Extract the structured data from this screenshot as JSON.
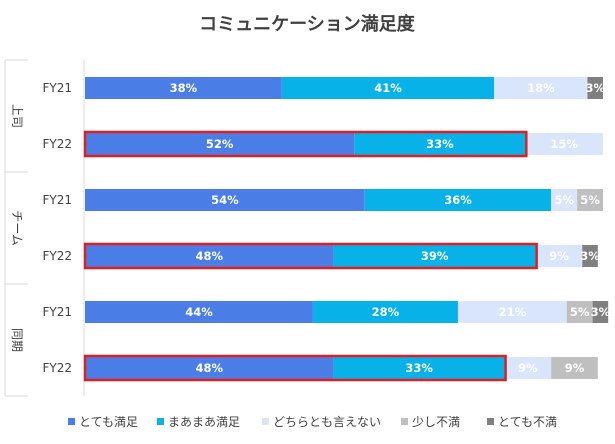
{
  "chart_data": {
    "type": "bar",
    "orientation": "horizontal",
    "stacked": true,
    "title": "コミュニケーション満足度",
    "xlim": [
      0,
      100
    ],
    "unit": "%",
    "legend_position": "bottom",
    "groups": [
      {
        "name": "上司",
        "rows": [
          {
            "label": "FY21",
            "values": [
              38,
              41,
              18,
              0,
              3
            ],
            "highlighted": false
          },
          {
            "label": "FY22",
            "values": [
              52,
              33,
              15,
              0,
              0
            ],
            "highlighted": true
          }
        ]
      },
      {
        "name": "チーム",
        "rows": [
          {
            "label": "FY21",
            "values": [
              54,
              36,
              5,
              5,
              0
            ],
            "highlighted": false
          },
          {
            "label": "FY22",
            "values": [
              48,
              39,
              9,
              0,
              3
            ],
            "highlighted": true
          }
        ]
      },
      {
        "name": "同期",
        "rows": [
          {
            "label": "FY21",
            "values": [
              44,
              28,
              21,
              5,
              3
            ],
            "highlighted": false
          },
          {
            "label": "FY22",
            "values": [
              48,
              33,
              9,
              9,
              0
            ],
            "highlighted": true
          }
        ]
      }
    ],
    "series": [
      {
        "name": "とても満足",
        "color": "#4a7ee6",
        "label_color": "#ffffff"
      },
      {
        "name": "まあまあ満足",
        "color": "#08b1e8",
        "label_color": "#ffffff"
      },
      {
        "name": "どちらとも言えない",
        "color": "#d9e5fb",
        "label_color": "#ffffff"
      },
      {
        "name": "少し不満",
        "color": "#bfbfbf",
        "label_color": "#ffffff"
      },
      {
        "name": "とても不満",
        "color": "#7f7f7f",
        "label_color": "#ffffff"
      }
    ],
    "highlight_color": "#e02020"
  }
}
